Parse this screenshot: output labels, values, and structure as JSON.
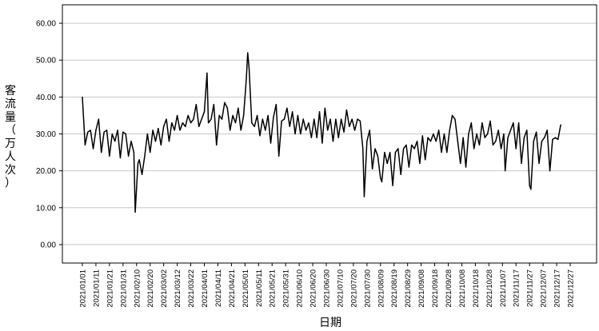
{
  "chart_data": {
    "type": "line",
    "title": "",
    "xlabel": "日期",
    "ylabel": "客流量（万人次）",
    "ylim": [
      -5,
      65
    ],
    "yticks": [
      "0.00",
      "10.00",
      "20.00",
      "30.00",
      "40.00",
      "50.00",
      "60.00"
    ],
    "grid": "horizontal",
    "legend": "none",
    "line_color": "#000000",
    "x_tick_labels": [
      "2021/01/01",
      "2021/01/11",
      "2021/01/21",
      "2021/01/31",
      "2021/02/10",
      "2021/02/20",
      "2021/03/02",
      "2021/03/12",
      "2021/03/22",
      "2021/04/01",
      "2021/04/11",
      "2021/04/21",
      "2021/05/01",
      "2021/05/11",
      "2021/05/21",
      "2021/05/31",
      "2021/06/10",
      "2021/06/20",
      "2021/06/30",
      "2021/07/10",
      "2021/07/20",
      "2021/07/30",
      "2021/08/09",
      "2021/08/19",
      "2021/08/29",
      "2021/09/08",
      "2021/09/18",
      "2021/09/28",
      "2021/10/08",
      "2021/10/18",
      "2021/10/28",
      "2021/11/07",
      "2021/11/17",
      "2021/11/27",
      "2021/12/07",
      "2021/12/17",
      "2021/12/27"
    ],
    "x_start": "2021-01-01",
    "x_end": "2021-12-27",
    "series": [
      {
        "points": [
          [
            "2021-01-01",
            40
          ],
          [
            "2021-01-03",
            27
          ],
          [
            "2021-01-05",
            30.5
          ],
          [
            "2021-01-07",
            31
          ],
          [
            "2021-01-09",
            26
          ],
          [
            "2021-01-11",
            31
          ],
          [
            "2021-01-13",
            34
          ],
          [
            "2021-01-15",
            25
          ],
          [
            "2021-01-17",
            30.5
          ],
          [
            "2021-01-19",
            31
          ],
          [
            "2021-01-21",
            24
          ],
          [
            "2021-01-23",
            30
          ],
          [
            "2021-01-25",
            28
          ],
          [
            "2021-01-27",
            31
          ],
          [
            "2021-01-29",
            23.5
          ],
          [
            "2021-01-31",
            30.5
          ],
          [
            "2021-02-02",
            30
          ],
          [
            "2021-02-04",
            24
          ],
          [
            "2021-02-06",
            28
          ],
          [
            "2021-02-08",
            25
          ],
          [
            "2021-02-09",
            8.8
          ],
          [
            "2021-02-11",
            22
          ],
          [
            "2021-02-12",
            23
          ],
          [
            "2021-02-14",
            19
          ],
          [
            "2021-02-16",
            24
          ],
          [
            "2021-02-18",
            30
          ],
          [
            "2021-02-20",
            25
          ],
          [
            "2021-02-22",
            31
          ],
          [
            "2021-02-24",
            28
          ],
          [
            "2021-02-26",
            31.5
          ],
          [
            "2021-02-28",
            27
          ],
          [
            "2021-03-02",
            32
          ],
          [
            "2021-03-04",
            34
          ],
          [
            "2021-03-06",
            28
          ],
          [
            "2021-03-08",
            33
          ],
          [
            "2021-03-10",
            31
          ],
          [
            "2021-03-12",
            35
          ],
          [
            "2021-03-14",
            31
          ],
          [
            "2021-03-16",
            33
          ],
          [
            "2021-03-18",
            32
          ],
          [
            "2021-03-20",
            35
          ],
          [
            "2021-03-22",
            33
          ],
          [
            "2021-03-24",
            34
          ],
          [
            "2021-03-26",
            38
          ],
          [
            "2021-03-28",
            32
          ],
          [
            "2021-03-30",
            34
          ],
          [
            "2021-04-01",
            36
          ],
          [
            "2021-04-03",
            46.5
          ],
          [
            "2021-04-04",
            33
          ],
          [
            "2021-04-06",
            34
          ],
          [
            "2021-04-08",
            38
          ],
          [
            "2021-04-10",
            27
          ],
          [
            "2021-04-12",
            35
          ],
          [
            "2021-04-14",
            34
          ],
          [
            "2021-04-16",
            38.5
          ],
          [
            "2021-04-18",
            37
          ],
          [
            "2021-04-20",
            31
          ],
          [
            "2021-04-22",
            35
          ],
          [
            "2021-04-24",
            33
          ],
          [
            "2021-04-26",
            37
          ],
          [
            "2021-04-28",
            31
          ],
          [
            "2021-04-30",
            35
          ],
          [
            "2021-05-02",
            45
          ],
          [
            "2021-05-03",
            52
          ],
          [
            "2021-05-04",
            48
          ],
          [
            "2021-05-06",
            33
          ],
          [
            "2021-05-08",
            32
          ],
          [
            "2021-05-10",
            35
          ],
          [
            "2021-05-12",
            29.5
          ],
          [
            "2021-05-14",
            34
          ],
          [
            "2021-05-16",
            31
          ],
          [
            "2021-05-18",
            35
          ],
          [
            "2021-05-20",
            27.5
          ],
          [
            "2021-05-22",
            34.5
          ],
          [
            "2021-05-24",
            38
          ],
          [
            "2021-05-26",
            24
          ],
          [
            "2021-05-28",
            33.5
          ],
          [
            "2021-05-30",
            34
          ],
          [
            "2021-06-01",
            37
          ],
          [
            "2021-06-03",
            32
          ],
          [
            "2021-06-05",
            36
          ],
          [
            "2021-06-07",
            30
          ],
          [
            "2021-06-09",
            35
          ],
          [
            "2021-06-11",
            30
          ],
          [
            "2021-06-13",
            34
          ],
          [
            "2021-06-15",
            31
          ],
          [
            "2021-06-17",
            33
          ],
          [
            "2021-06-19",
            29
          ],
          [
            "2021-06-21",
            34
          ],
          [
            "2021-06-23",
            29
          ],
          [
            "2021-06-25",
            36
          ],
          [
            "2021-06-27",
            27.5
          ],
          [
            "2021-06-29",
            37
          ],
          [
            "2021-07-01",
            31
          ],
          [
            "2021-07-03",
            34
          ],
          [
            "2021-07-05",
            28
          ],
          [
            "2021-07-07",
            34
          ],
          [
            "2021-07-09",
            29
          ],
          [
            "2021-07-11",
            34
          ],
          [
            "2021-07-13",
            30.5
          ],
          [
            "2021-07-15",
            36.5
          ],
          [
            "2021-07-17",
            32
          ],
          [
            "2021-07-19",
            34
          ],
          [
            "2021-07-21",
            31
          ],
          [
            "2021-07-23",
            34
          ],
          [
            "2021-07-25",
            33.5
          ],
          [
            "2021-07-27",
            26
          ],
          [
            "2021-07-28",
            13
          ],
          [
            "2021-07-30",
            28
          ],
          [
            "2021-08-01",
            31
          ],
          [
            "2021-08-03",
            20.5
          ],
          [
            "2021-08-05",
            26
          ],
          [
            "2021-08-07",
            24
          ],
          [
            "2021-08-09",
            18
          ],
          [
            "2021-08-10",
            17
          ],
          [
            "2021-08-12",
            25
          ],
          [
            "2021-08-14",
            22
          ],
          [
            "2021-08-16",
            25
          ],
          [
            "2021-08-18",
            16
          ],
          [
            "2021-08-20",
            25
          ],
          [
            "2021-08-22",
            26
          ],
          [
            "2021-08-24",
            19
          ],
          [
            "2021-08-26",
            26
          ],
          [
            "2021-08-28",
            27
          ],
          [
            "2021-08-30",
            21
          ],
          [
            "2021-09-01",
            27
          ],
          [
            "2021-09-03",
            26
          ],
          [
            "2021-09-05",
            28
          ],
          [
            "2021-09-07",
            22
          ],
          [
            "2021-09-09",
            29.5
          ],
          [
            "2021-09-11",
            23
          ],
          [
            "2021-09-13",
            29
          ],
          [
            "2021-09-15",
            28
          ],
          [
            "2021-09-17",
            30
          ],
          [
            "2021-09-19",
            28
          ],
          [
            "2021-09-21",
            31
          ],
          [
            "2021-09-23",
            25
          ],
          [
            "2021-09-25",
            30
          ],
          [
            "2021-09-27",
            25
          ],
          [
            "2021-09-29",
            31
          ],
          [
            "2021-10-01",
            35
          ],
          [
            "2021-10-03",
            34
          ],
          [
            "2021-10-05",
            28
          ],
          [
            "2021-10-07",
            22
          ],
          [
            "2021-10-09",
            29
          ],
          [
            "2021-10-11",
            21
          ],
          [
            "2021-10-13",
            30
          ],
          [
            "2021-10-15",
            33
          ],
          [
            "2021-10-17",
            26
          ],
          [
            "2021-10-19",
            30
          ],
          [
            "2021-10-21",
            27
          ],
          [
            "2021-10-23",
            33
          ],
          [
            "2021-10-25",
            29
          ],
          [
            "2021-10-27",
            30
          ],
          [
            "2021-10-29",
            33.5
          ],
          [
            "2021-10-31",
            27
          ],
          [
            "2021-11-02",
            28
          ],
          [
            "2021-11-04",
            31
          ],
          [
            "2021-11-06",
            26
          ],
          [
            "2021-11-08",
            30
          ],
          [
            "2021-11-09",
            20
          ],
          [
            "2021-11-11",
            29
          ],
          [
            "2021-11-13",
            31
          ],
          [
            "2021-11-15",
            33
          ],
          [
            "2021-11-17",
            26
          ],
          [
            "2021-11-19",
            33
          ],
          [
            "2021-11-21",
            22
          ],
          [
            "2021-11-23",
            29
          ],
          [
            "2021-11-25",
            31
          ],
          [
            "2021-11-27",
            16
          ],
          [
            "2021-11-28",
            15
          ],
          [
            "2021-11-30",
            28
          ],
          [
            "2021-12-02",
            30.5
          ],
          [
            "2021-12-04",
            22
          ],
          [
            "2021-12-06",
            28
          ],
          [
            "2021-12-08",
            29
          ],
          [
            "2021-12-10",
            31
          ],
          [
            "2021-12-12",
            20
          ],
          [
            "2021-12-14",
            28.5
          ],
          [
            "2021-12-16",
            29
          ],
          [
            "2021-12-18",
            28.5
          ],
          [
            "2021-12-20",
            32.5
          ]
        ]
      }
    ]
  }
}
